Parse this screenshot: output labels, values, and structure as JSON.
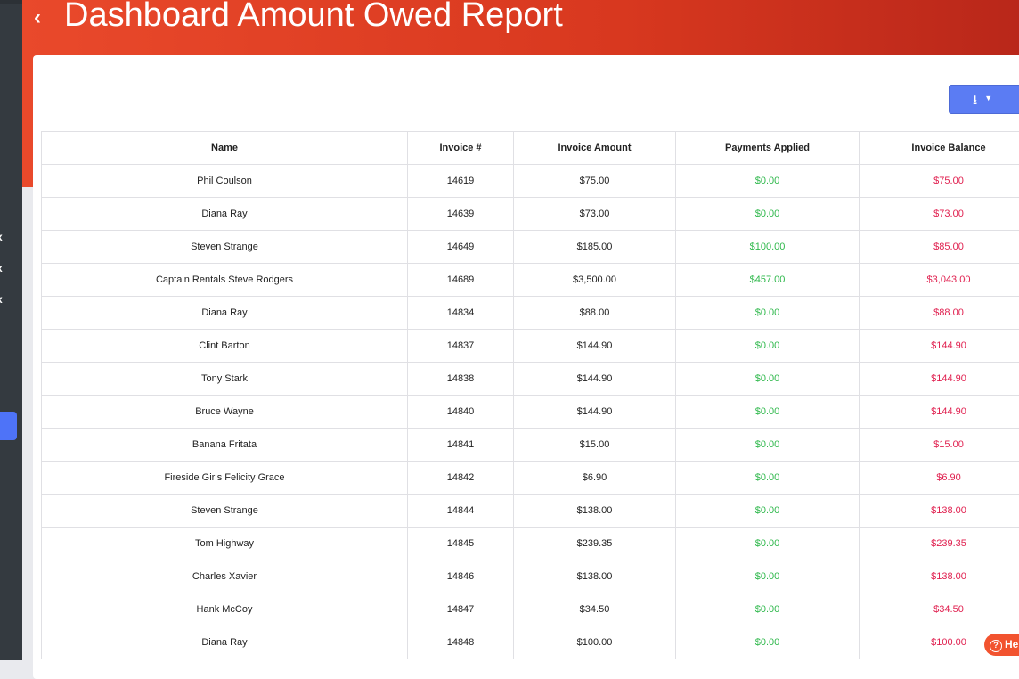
{
  "header": {
    "back_icon": "‹",
    "title": "Dashboard Amount Owed Report"
  },
  "sidebar": {
    "close_marks": [
      "x",
      "x",
      "x"
    ]
  },
  "toolbar": {
    "download_icon": "⭳",
    "caret": "▼"
  },
  "table": {
    "columns": [
      "Name",
      "Invoice #",
      "Invoice Amount",
      "Payments Applied",
      "Invoice Balance"
    ],
    "rows": [
      [
        "Phil Coulson",
        "14619",
        "$75.00",
        "$0.00",
        "$75.00"
      ],
      [
        "Diana Ray",
        "14639",
        "$73.00",
        "$0.00",
        "$73.00"
      ],
      [
        "Steven Strange",
        "14649",
        "$185.00",
        "$100.00",
        "$85.00"
      ],
      [
        "Captain Rentals Steve Rodgers",
        "14689",
        "$3,500.00",
        "$457.00",
        "$3,043.00"
      ],
      [
        "Diana Ray",
        "14834",
        "$88.00",
        "$0.00",
        "$88.00"
      ],
      [
        "Clint Barton",
        "14837",
        "$144.90",
        "$0.00",
        "$144.90"
      ],
      [
        "Tony Stark",
        "14838",
        "$144.90",
        "$0.00",
        "$144.90"
      ],
      [
        "Bruce Wayne",
        "14840",
        "$144.90",
        "$0.00",
        "$144.90"
      ],
      [
        "Banana Fritata",
        "14841",
        "$15.00",
        "$0.00",
        "$15.00"
      ],
      [
        "Fireside Girls Felicity Grace",
        "14842",
        "$6.90",
        "$0.00",
        "$6.90"
      ],
      [
        "Steven Strange",
        "14844",
        "$138.00",
        "$0.00",
        "$138.00"
      ],
      [
        "Tom Highway",
        "14845",
        "$239.35",
        "$0.00",
        "$239.35"
      ],
      [
        "Charles Xavier",
        "14846",
        "$138.00",
        "$0.00",
        "$138.00"
      ],
      [
        "Hank McCoy",
        "14847",
        "$34.50",
        "$0.00",
        "$34.50"
      ],
      [
        "Diana Ray",
        "14848",
        "$100.00",
        "$0.00",
        "$100.00"
      ]
    ]
  },
  "help": {
    "icon": "?",
    "label": "He"
  },
  "colors": {
    "accent": "#e9492b",
    "primary": "#5b7cf3",
    "paid": "#2eb84b",
    "owed": "#e0204f"
  }
}
